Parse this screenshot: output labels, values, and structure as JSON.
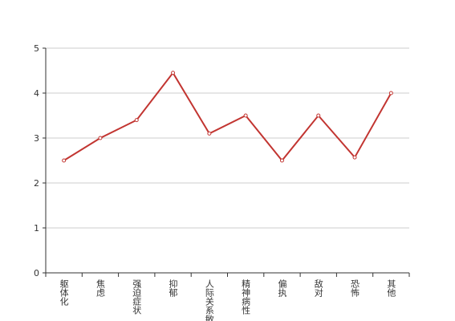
{
  "chart_data": {
    "type": "line",
    "categories": [
      "躯体化",
      "焦虑",
      "强迫症状",
      "抑郁",
      "人际关系敏感",
      "精神病性",
      "偏执",
      "敌对",
      "恐怖",
      "其他"
    ],
    "values": [
      2.5,
      3.0,
      3.4,
      4.45,
      3.1,
      3.5,
      2.5,
      3.5,
      2.57,
      4.0
    ],
    "color": "#c23531",
    "ylim": [
      0,
      5
    ],
    "yticks": [
      0,
      1,
      2,
      3,
      4,
      5
    ],
    "grid": true
  }
}
